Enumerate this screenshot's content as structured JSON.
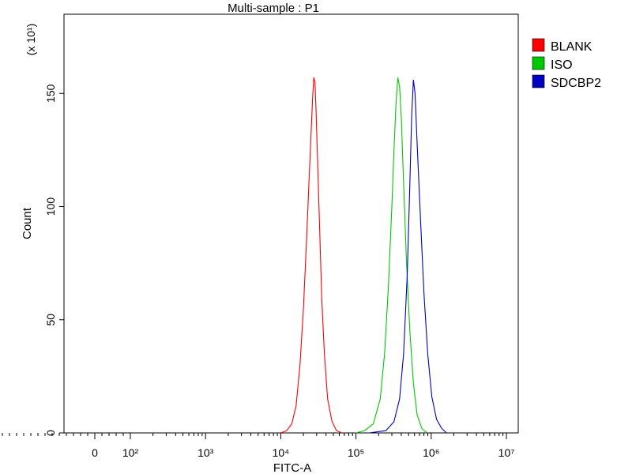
{
  "chart_data": {
    "type": "line",
    "title": "Multi-sample : P1",
    "xlabel": "FITC-A",
    "ylabel": "Count",
    "y_multiplier_label": "(x 10¹)",
    "x_scale": "biexponential",
    "xlim": [
      -300,
      10000000
    ],
    "ylim": [
      0,
      185
    ],
    "x_ticks": [
      {
        "value": 0,
        "label": "0"
      },
      {
        "value": 100,
        "label": "10²"
      },
      {
        "value": 1000,
        "label": "10³"
      },
      {
        "value": 10000,
        "label": "10⁴"
      },
      {
        "value": 100000,
        "label": "10⁵"
      },
      {
        "value": 1000000,
        "label": "10⁶"
      },
      {
        "value": 10000000,
        "label": "10⁷"
      }
    ],
    "y_ticks": [
      {
        "value": 0,
        "label": "0"
      },
      {
        "value": 50,
        "label": "50"
      },
      {
        "value": 100,
        "label": "100"
      },
      {
        "value": 150,
        "label": "150"
      }
    ],
    "grid": false,
    "legend_position": "right",
    "series": [
      {
        "name": "BLANK",
        "color": "#ff0000",
        "points": [
          [
            10000,
            0
          ],
          [
            12000,
            1
          ],
          [
            14000,
            4
          ],
          [
            16000,
            12
          ],
          [
            18000,
            30
          ],
          [
            20000,
            55
          ],
          [
            22000,
            85
          ],
          [
            24000,
            115
          ],
          [
            25500,
            135
          ],
          [
            26500,
            148
          ],
          [
            27500,
            157
          ],
          [
            28500,
            155
          ],
          [
            29500,
            142
          ],
          [
            31000,
            118
          ],
          [
            33000,
            88
          ],
          [
            35000,
            60
          ],
          [
            38000,
            35
          ],
          [
            42000,
            15
          ],
          [
            48000,
            5
          ],
          [
            55000,
            1
          ],
          [
            65000,
            0
          ]
        ]
      },
      {
        "name": "ISO",
        "color": "#00c800",
        "points": [
          [
            100000,
            0
          ],
          [
            130000,
            1
          ],
          [
            170000,
            4
          ],
          [
            210000,
            15
          ],
          [
            240000,
            35
          ],
          [
            270000,
            65
          ],
          [
            300000,
            100
          ],
          [
            320000,
            125
          ],
          [
            340000,
            145
          ],
          [
            360000,
            157
          ],
          [
            380000,
            153
          ],
          [
            400000,
            140
          ],
          [
            430000,
            110
          ],
          [
            470000,
            75
          ],
          [
            520000,
            45
          ],
          [
            580000,
            22
          ],
          [
            650000,
            8
          ],
          [
            750000,
            2
          ],
          [
            880000,
            0
          ]
        ]
      },
      {
        "name": "SDCBP2",
        "color": "#0000c0",
        "points": [
          [
            150000,
            0
          ],
          [
            250000,
            1
          ],
          [
            320000,
            5
          ],
          [
            380000,
            15
          ],
          [
            430000,
            35
          ],
          [
            480000,
            70
          ],
          [
            520000,
            110
          ],
          [
            550000,
            140
          ],
          [
            580000,
            156
          ],
          [
            610000,
            150
          ],
          [
            650000,
            128
          ],
          [
            720000,
            95
          ],
          [
            800000,
            62
          ],
          [
            900000,
            35
          ],
          [
            1020000,
            16
          ],
          [
            1180000,
            6
          ],
          [
            1380000,
            2
          ],
          [
            1600000,
            0
          ]
        ]
      }
    ]
  }
}
